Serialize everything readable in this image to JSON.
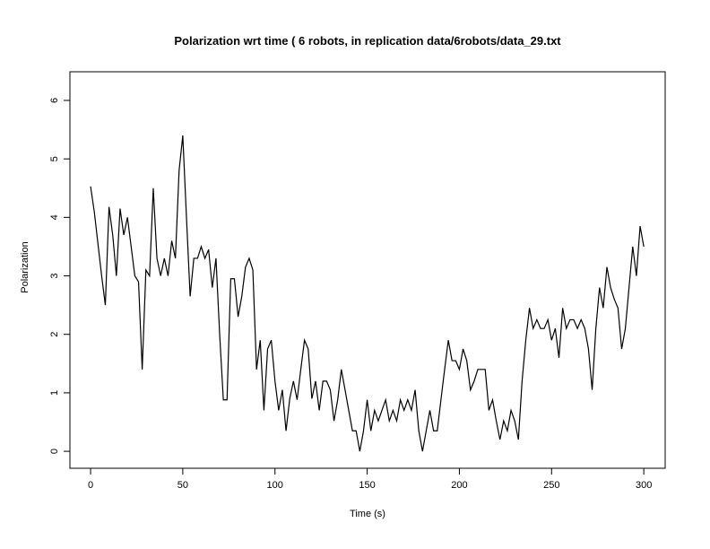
{
  "chart_data": {
    "type": "line",
    "title": "Polarization wrt time ( 6 robots, in replication  data/6robots/data_29.txt",
    "x_label": "Time (s)",
    "y_label": "Polarization",
    "x": [
      0,
      2,
      4,
      6,
      8,
      10,
      12,
      14,
      16,
      18,
      20,
      22,
      24,
      26,
      28,
      30,
      32,
      34,
      36,
      38,
      40,
      42,
      44,
      46,
      48,
      50,
      52,
      54,
      56,
      58,
      60,
      62,
      64,
      66,
      68,
      70,
      72,
      74,
      76,
      78,
      80,
      82,
      84,
      86,
      88,
      90,
      92,
      94,
      96,
      98,
      100,
      102,
      104,
      106,
      108,
      110,
      112,
      114,
      116,
      118,
      120,
      122,
      124,
      126,
      128,
      130,
      132,
      134,
      136,
      138,
      140,
      142,
      144,
      146,
      148,
      150,
      152,
      154,
      156,
      158,
      160,
      162,
      164,
      166,
      168,
      170,
      172,
      174,
      176,
      178,
      180,
      182,
      184,
      186,
      188,
      190,
      192,
      194,
      196,
      198,
      200,
      202,
      204,
      206,
      208,
      210,
      212,
      214,
      216,
      218,
      220,
      222,
      224,
      226,
      228,
      230,
      232,
      234,
      236,
      238,
      240,
      242,
      244,
      246,
      248,
      250,
      252,
      254,
      256,
      258,
      260,
      262,
      264,
      266,
      268,
      270,
      272,
      274,
      276,
      278,
      280,
      282,
      284,
      286,
      288,
      290,
      292,
      294,
      296,
      298,
      300
    ],
    "series": [
      {
        "color": "#000000",
        "values": [
          4.53,
          4.1,
          3.55,
          3.0,
          2.5,
          4.18,
          3.7,
          3.0,
          4.15,
          3.7,
          4.0,
          3.5,
          3.0,
          2.9,
          1.4,
          3.1,
          3.0,
          4.5,
          3.3,
          3.0,
          3.3,
          3.0,
          3.6,
          3.3,
          4.8,
          5.4,
          4.0,
          2.65,
          3.3,
          3.3,
          3.5,
          3.3,
          3.45,
          2.8,
          3.3,
          2.0,
          0.88,
          0.88,
          2.95,
          2.95,
          2.3,
          2.65,
          3.15,
          3.3,
          3.1,
          1.4,
          1.9,
          0.7,
          1.75,
          1.9,
          1.2,
          0.7,
          1.05,
          0.35,
          0.9,
          1.2,
          0.88,
          1.4,
          1.9,
          1.75,
          0.9,
          1.2,
          0.7,
          1.2,
          1.2,
          1.05,
          0.52,
          0.88,
          1.4,
          1.05,
          0.7,
          0.35,
          0.35,
          0,
          0.35,
          0.88,
          0.35,
          0.7,
          0.52,
          0.7,
          0.88,
          0.52,
          0.7,
          0.52,
          0.88,
          0.7,
          0.88,
          0.7,
          1.05,
          0.35,
          0,
          0.35,
          0.7,
          0.35,
          0.35,
          0.88,
          1.4,
          1.9,
          1.55,
          1.55,
          1.4,
          1.75,
          1.55,
          1.05,
          1.2,
          1.4,
          1.4,
          1.4,
          0.7,
          0.88,
          0.52,
          0.2,
          0.52,
          0.35,
          0.7,
          0.52,
          0.2,
          1.2,
          1.9,
          2.45,
          2.1,
          2.25,
          2.1,
          2.1,
          2.25,
          1.9,
          2.1,
          1.6,
          2.45,
          2.1,
          2.25,
          2.25,
          2.1,
          2.25,
          2.1,
          1.75,
          1.05,
          2.1,
          2.8,
          2.45,
          3.15,
          2.8,
          2.6,
          2.45,
          1.75,
          2.1,
          2.8,
          3.5,
          3.0,
          3.85,
          3.5
        ]
      }
    ],
    "xlim": [
      -11.2,
      311.6
    ],
    "xticks": [
      0,
      50,
      100,
      150,
      200,
      250,
      300
    ],
    "ylim": [
      -0.29,
      6.49
    ],
    "yticks": [
      0,
      1,
      2,
      3,
      4,
      5,
      6
    ]
  }
}
